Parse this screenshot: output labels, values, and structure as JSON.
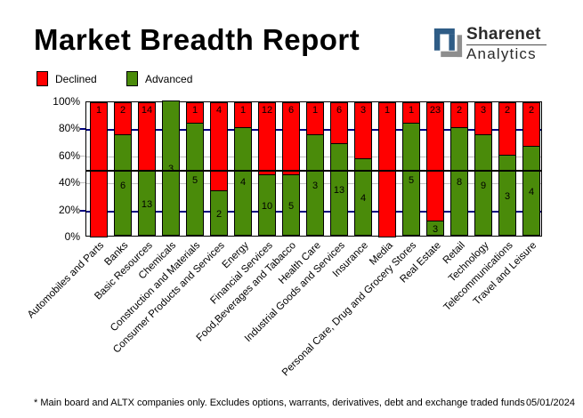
{
  "header": {
    "title": "Market Breadth Report"
  },
  "logo": {
    "name": "Sharenet",
    "subname": "Analytics",
    "mark_blue": "#2e5c86",
    "mark_gray": "#8e8e8e",
    "text_color": "#2b2b2b"
  },
  "legend": {
    "items": [
      {
        "label": "Declined",
        "color": "#ff0000"
      },
      {
        "label": "Advanced",
        "color": "#4a8b0a"
      }
    ]
  },
  "chart_data": {
    "type": "bar",
    "stacked": true,
    "title": "Market Breadth Report",
    "ylabel": "",
    "xlabel": "",
    "ylim": [
      0,
      100
    ],
    "categories": [
      "Automobiles and Parts",
      "Banks",
      "Basic Resources",
      "Chemicals",
      "Construction and Materials",
      "Consumer Products and Services",
      "Energy",
      "Financial Services",
      "Food,Beverages and Tabacco",
      "Health Care",
      "Industrial Goods and Services",
      "Insurance",
      "Media",
      "Personal Care, Drug and Grocery Stores",
      "Real Estate",
      "Retail",
      "Technology",
      "Telecommunications",
      "Travel and Leisure"
    ],
    "series": [
      {
        "name": "Declined",
        "color": "#ff0000",
        "counts": [
          1,
          2,
          14,
          null,
          1,
          4,
          1,
          12,
          6,
          1,
          6,
          3,
          1,
          1,
          23,
          2,
          3,
          2,
          2
        ]
      },
      {
        "name": "Advanced",
        "color": "#4a8b0a",
        "counts": [
          null,
          6,
          13,
          3,
          5,
          2,
          4,
          10,
          5,
          3,
          13,
          4,
          null,
          5,
          3,
          8,
          9,
          3,
          4
        ]
      }
    ],
    "advanced_pct": [
      0,
      75,
      48.1,
      100,
      83.3,
      33.3,
      80,
      45.5,
      45.5,
      75,
      68.4,
      57.1,
      0,
      83.3,
      11.5,
      80,
      75,
      60,
      66.7
    ],
    "yticks": [
      {
        "label": "0%",
        "pct": 0
      },
      {
        "label": "20%",
        "pct": 20
      },
      {
        "label": "40%",
        "pct": 40
      },
      {
        "label": "60%",
        "pct": 60
      },
      {
        "label": "80%",
        "pct": 80
      },
      {
        "label": "100%",
        "pct": 100
      }
    ],
    "gridlines": [
      {
        "pct": 80,
        "color": "#000080",
        "thickness": 2
      },
      {
        "pct": 60,
        "color": "#c0c0c0",
        "thickness": 1
      },
      {
        "pct": 40,
        "color": "#c0c0c0",
        "thickness": 1
      },
      {
        "pct": 20,
        "color": "#000080",
        "thickness": 2
      }
    ],
    "reference_line": {
      "pct": 50,
      "color": "#000000",
      "over_bars": true
    },
    "legend_position": "top-left",
    "grid": true
  },
  "footer": {
    "note": "* Main board and ALTX companies only. Excludes options, warrants, derivatives, debt and exchange traded funds",
    "date": "05/01/2024"
  }
}
